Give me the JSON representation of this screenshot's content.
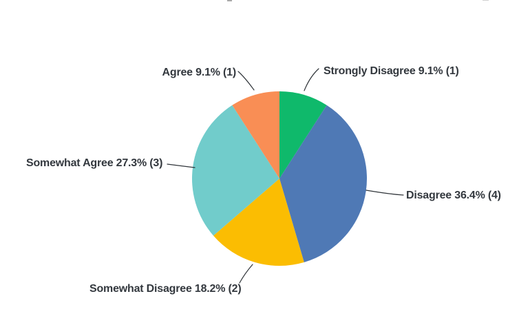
{
  "page": {
    "background_color": "#ffffff",
    "label_color": "#33383E",
    "leader_line_color": "#2E3338"
  },
  "chart_data": {
    "type": "pie",
    "title": "",
    "legend_position": "none",
    "label_placement": "outside-with-leader-lines",
    "start_angle_deg": 0,
    "direction": "clockwise",
    "slices": [
      {
        "category": "Strongly Disagree",
        "percent": 9.1,
        "count": 1,
        "label": "Strongly Disagree 9.1% (1)",
        "color": "#0FB96B"
      },
      {
        "category": "Disagree",
        "percent": 36.4,
        "count": 4,
        "label": "Disagree 36.4% (4)",
        "color": "#4F79B5"
      },
      {
        "category": "Somewhat Disagree",
        "percent": 18.2,
        "count": 2,
        "label": "Somewhat Disagree 18.2% (2)",
        "color": "#FBBD02"
      },
      {
        "category": "Somewhat Agree",
        "percent": 27.3,
        "count": 3,
        "label": "Somewhat Agree 27.3% (3)",
        "color": "#71CCCB"
      },
      {
        "category": "Agree",
        "percent": 9.1,
        "count": 1,
        "label": "Agree 9.1% (1)",
        "color": "#F98E55"
      }
    ]
  }
}
